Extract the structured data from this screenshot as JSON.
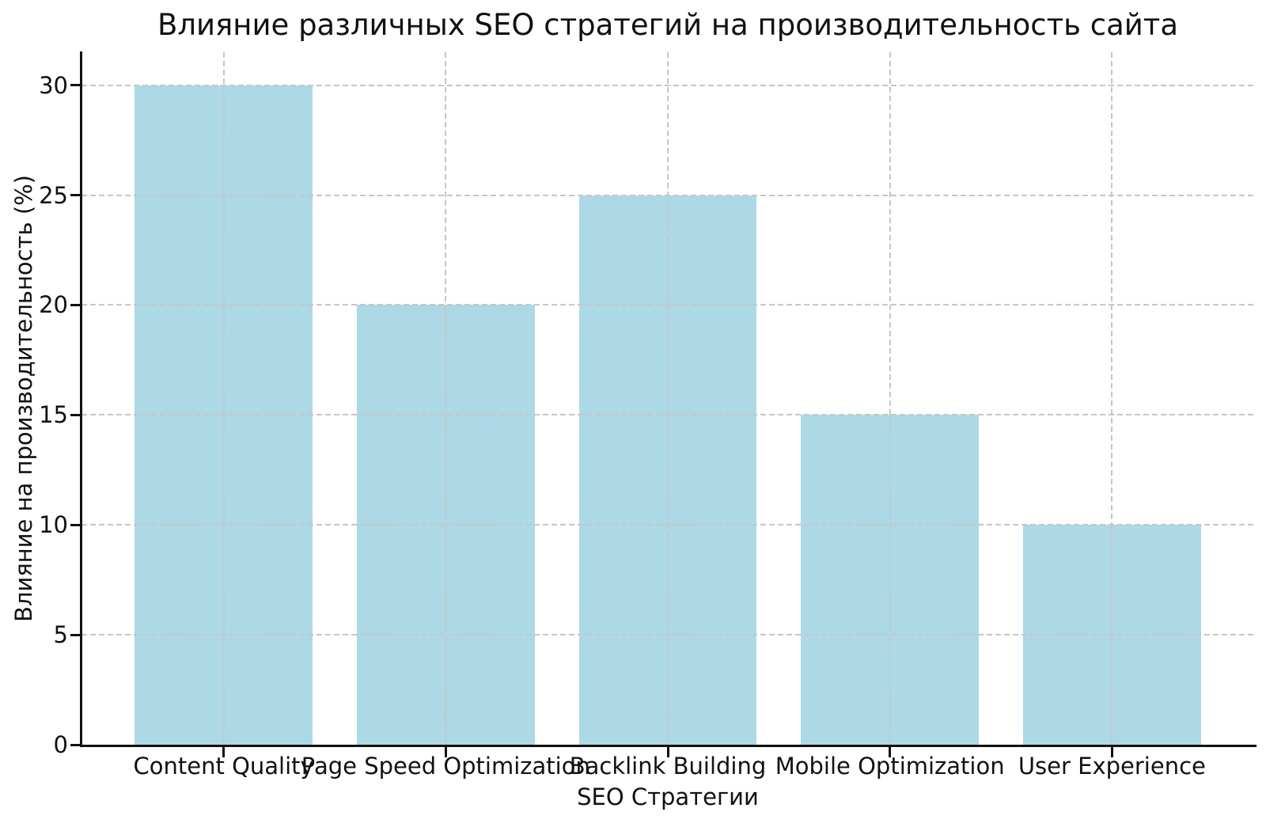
{
  "chart_data": {
    "type": "bar",
    "title": "Влияние различных SEO стратегий на производительность сайта",
    "xlabel": "SEO Стратегии",
    "ylabel": "Влияние на производительность (%)",
    "categories": [
      "Content Quality",
      "Page Speed Optimization",
      "Backlink Building",
      "Mobile Optimization",
      "User Experience"
    ],
    "values": [
      30,
      20,
      25,
      15,
      10
    ],
    "yticks": [
      0,
      5,
      10,
      15,
      20,
      25,
      30
    ],
    "ylim": [
      0,
      31.5
    ],
    "bar_color": "#add8e6",
    "grid": true,
    "grid_style": "dashed",
    "grid_color": "#c6c6c6",
    "grid_above_bars": true,
    "axis_color": "#111111",
    "background": "#ffffff",
    "legend": null
  }
}
